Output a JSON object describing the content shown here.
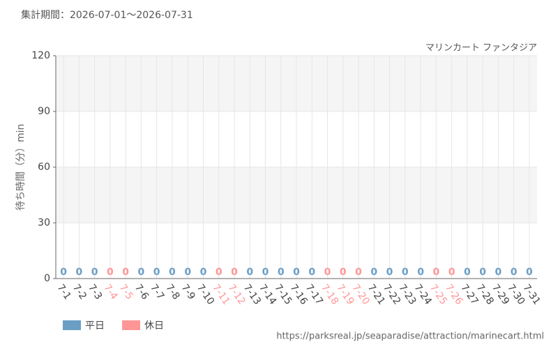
{
  "chart_data": {
    "type": "bar",
    "title": "集計期間：2026-07-01～2026-07-31",
    "subtitle": "マリンカート ファンタジア",
    "y_label": "待ち時間（分）min",
    "source": "https://parksreal.jp/seaparadise/attraction/marinecart.html",
    "categories": [
      "7-1",
      "7-2",
      "7-3",
      "7-4",
      "7-5",
      "7-6",
      "7-7",
      "7-8",
      "7-9",
      "7-10",
      "7-11",
      "7-12",
      "7-13",
      "7-14",
      "7-15",
      "7-16",
      "7-17",
      "7-18",
      "7-19",
      "7-20",
      "7-21",
      "7-22",
      "7-23",
      "7-24",
      "7-25",
      "7-26",
      "7-27",
      "7-28",
      "7-29",
      "7-30",
      "7-31"
    ],
    "series": [
      {
        "name": "平日",
        "color": "#6a9ec5",
        "tick_label_color": "#444444",
        "values": [
          0,
          0,
          0,
          null,
          null,
          0,
          0,
          0,
          0,
          0,
          null,
          null,
          0,
          0,
          0,
          0,
          0,
          null,
          null,
          null,
          0,
          0,
          0,
          0,
          null,
          null,
          0,
          0,
          0,
          0,
          0
        ]
      },
      {
        "name": "休日",
        "color": "#ff9696",
        "tick_label_color": "#ff9696",
        "values": [
          null,
          null,
          null,
          0,
          0,
          null,
          null,
          null,
          null,
          null,
          0,
          0,
          null,
          null,
          null,
          null,
          null,
          0,
          0,
          0,
          null,
          null,
          null,
          null,
          0,
          0,
          null,
          null,
          null,
          null,
          null
        ]
      }
    ],
    "ylim": [
      0,
      120
    ],
    "yticks": [
      0,
      30,
      60,
      90,
      120
    ],
    "grid": true,
    "banded": true
  }
}
